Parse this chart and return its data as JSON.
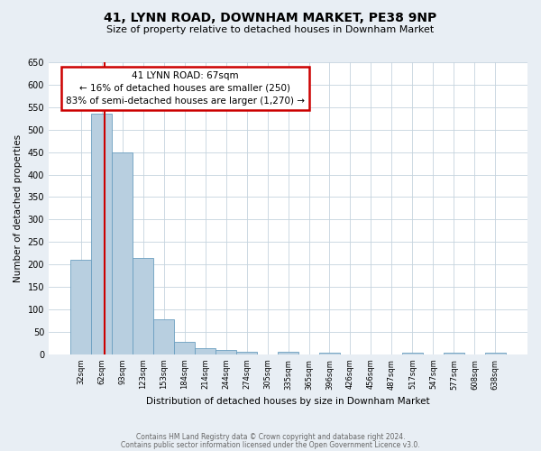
{
  "title": "41, LYNN ROAD, DOWNHAM MARKET, PE38 9NP",
  "subtitle": "Size of property relative to detached houses in Downham Market",
  "xlabel": "Distribution of detached houses by size in Downham Market",
  "ylabel": "Number of detached properties",
  "bin_labels": [
    "32sqm",
    "62sqm",
    "93sqm",
    "123sqm",
    "153sqm",
    "184sqm",
    "214sqm",
    "244sqm",
    "274sqm",
    "305sqm",
    "335sqm",
    "365sqm",
    "396sqm",
    "426sqm",
    "456sqm",
    "487sqm",
    "517sqm",
    "547sqm",
    "577sqm",
    "608sqm",
    "638sqm"
  ],
  "bar_values": [
    210,
    535,
    450,
    215,
    78,
    27,
    14,
    10,
    5,
    0,
    5,
    0,
    4,
    0,
    0,
    0,
    3,
    0,
    3,
    0,
    3
  ],
  "bar_color": "#b8cfe0",
  "bar_edge_color": "#6b9fc0",
  "property_line_color": "#cc0000",
  "annotation_title": "41 LYNN ROAD: 67sqm",
  "annotation_line1": "← 16% of detached houses are smaller (250)",
  "annotation_line2": "83% of semi-detached houses are larger (1,270) →",
  "annotation_box_color": "#cc0000",
  "ylim": [
    0,
    650
  ],
  "yticks": [
    0,
    50,
    100,
    150,
    200,
    250,
    300,
    350,
    400,
    450,
    500,
    550,
    600,
    650
  ],
  "footer_line1": "Contains HM Land Registry data © Crown copyright and database right 2024.",
  "footer_line2": "Contains public sector information licensed under the Open Government Licence v3.0.",
  "bg_color": "#e8eef4",
  "plot_bg_color": "#ffffff",
  "grid_color": "#c5d3de"
}
